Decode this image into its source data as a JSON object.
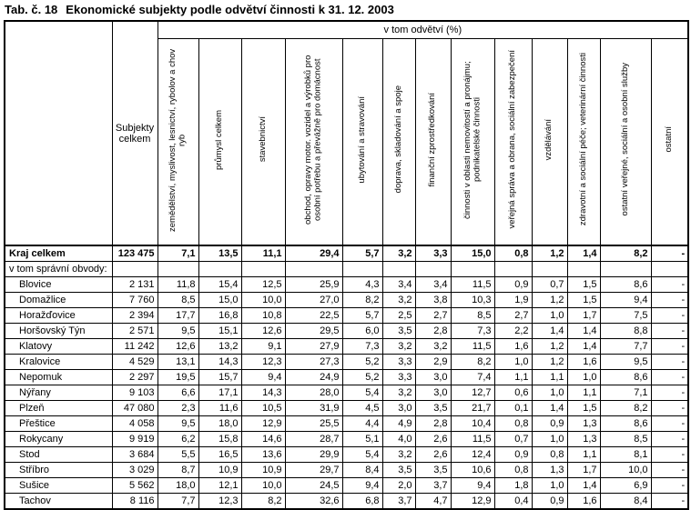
{
  "title": {
    "prefix": "Tab. č. 18",
    "text": "Ekonomické subjekty podle odvětví činnosti k 31. 12. 2003"
  },
  "table": {
    "subjects_header": "Subjekty celkem",
    "group_header": "v tom odvětví (%)",
    "columns": [
      "zemědělství, myslivost, lesnictví, rybolov a chov ryb",
      "průmysl celkem",
      "stavebnictví",
      "obchod, opravy motor. vozidel a výrobků pro osobní potřebu a převážně pro domácnost",
      "ubytování a stravování",
      "doprava, skladování a spoje",
      "finanční zprostředkování",
      "činnosti v oblasti nemovitostí a pronájmu; podnikatelské činnosti",
      "veřejná správa a obrana, sociální zabezpečení",
      "vzdělávání",
      "zdravotní a sociální péče; veterinární činnosti",
      "ostatní veřejné, sociální a osobní služby",
      "ostatní"
    ],
    "rows": [
      {
        "label": "Kraj celkem",
        "bold": true,
        "indent": false,
        "subjects": "123 475",
        "values": [
          "7,1",
          "13,5",
          "11,1",
          "29,4",
          "5,7",
          "3,2",
          "3,3",
          "15,0",
          "0,8",
          "1,2",
          "1,4",
          "8,2",
          "-"
        ]
      },
      {
        "label": "v tom správní obvody:",
        "bold": false,
        "indent": false,
        "subjects": "",
        "values": []
      },
      {
        "label": "Blovice",
        "bold": false,
        "indent": true,
        "subjects": "2 131",
        "values": [
          "11,8",
          "15,4",
          "12,5",
          "25,9",
          "4,3",
          "3,4",
          "3,4",
          "11,5",
          "0,9",
          "0,7",
          "1,5",
          "8,6",
          "-"
        ]
      },
      {
        "label": "Domažlice",
        "bold": false,
        "indent": true,
        "subjects": "7 760",
        "values": [
          "8,5",
          "15,0",
          "10,0",
          "27,0",
          "8,2",
          "3,2",
          "3,8",
          "10,3",
          "1,9",
          "1,2",
          "1,5",
          "9,4",
          "-"
        ]
      },
      {
        "label": "Horažďovice",
        "bold": false,
        "indent": true,
        "subjects": "2 394",
        "values": [
          "17,7",
          "16,8",
          "10,8",
          "22,5",
          "5,7",
          "2,5",
          "2,7",
          "8,5",
          "2,7",
          "1,0",
          "1,7",
          "7,5",
          "-"
        ]
      },
      {
        "label": "Horšovský Týn",
        "bold": false,
        "indent": true,
        "subjects": "2 571",
        "values": [
          "9,5",
          "15,1",
          "12,6",
          "29,5",
          "6,0",
          "3,5",
          "2,8",
          "7,3",
          "2,2",
          "1,4",
          "1,4",
          "8,8",
          "-"
        ]
      },
      {
        "label": "Klatovy",
        "bold": false,
        "indent": true,
        "subjects": "11 242",
        "values": [
          "12,6",
          "13,2",
          "9,1",
          "27,9",
          "7,3",
          "3,2",
          "3,2",
          "11,5",
          "1,6",
          "1,2",
          "1,4",
          "7,7",
          "-"
        ]
      },
      {
        "label": "Kralovice",
        "bold": false,
        "indent": true,
        "subjects": "4 529",
        "values": [
          "13,1",
          "14,3",
          "12,3",
          "27,3",
          "5,2",
          "3,3",
          "2,9",
          "8,2",
          "1,0",
          "1,2",
          "1,6",
          "9,5",
          "-"
        ]
      },
      {
        "label": "Nepomuk",
        "bold": false,
        "indent": true,
        "subjects": "2 297",
        "values": [
          "19,5",
          "15,7",
          "9,4",
          "24,9",
          "5,2",
          "3,3",
          "3,0",
          "7,4",
          "1,1",
          "1,1",
          "1,0",
          "8,6",
          "-"
        ]
      },
      {
        "label": "Nýřany",
        "bold": false,
        "indent": true,
        "subjects": "9 103",
        "values": [
          "6,6",
          "17,1",
          "14,3",
          "28,0",
          "5,4",
          "3,2",
          "3,0",
          "12,7",
          "0,6",
          "1,0",
          "1,1",
          "7,1",
          "-"
        ]
      },
      {
        "label": "Plzeň",
        "bold": false,
        "indent": true,
        "subjects": "47 080",
        "values": [
          "2,3",
          "11,6",
          "10,5",
          "31,9",
          "4,5",
          "3,0",
          "3,5",
          "21,7",
          "0,1",
          "1,4",
          "1,5",
          "8,2",
          "-"
        ]
      },
      {
        "label": "Přeštice",
        "bold": false,
        "indent": true,
        "subjects": "4 058",
        "values": [
          "9,5",
          "18,0",
          "12,9",
          "25,5",
          "4,4",
          "4,9",
          "2,8",
          "10,4",
          "0,8",
          "0,9",
          "1,3",
          "8,6",
          "-"
        ]
      },
      {
        "label": "Rokycany",
        "bold": false,
        "indent": true,
        "subjects": "9 919",
        "values": [
          "6,2",
          "15,8",
          "14,6",
          "28,7",
          "5,1",
          "4,0",
          "2,6",
          "11,5",
          "0,7",
          "1,0",
          "1,3",
          "8,5",
          "-"
        ]
      },
      {
        "label": "Stod",
        "bold": false,
        "indent": true,
        "subjects": "3 684",
        "values": [
          "5,5",
          "16,5",
          "13,6",
          "29,9",
          "5,4",
          "3,2",
          "2,6",
          "12,4",
          "0,9",
          "0,8",
          "1,1",
          "8,1",
          "-"
        ]
      },
      {
        "label": "Stříbro",
        "bold": false,
        "indent": true,
        "subjects": "3 029",
        "values": [
          "8,7",
          "10,9",
          "10,9",
          "29,7",
          "8,4",
          "3,5",
          "3,5",
          "10,6",
          "0,8",
          "1,3",
          "1,7",
          "10,0",
          "-"
        ]
      },
      {
        "label": "Sušice",
        "bold": false,
        "indent": true,
        "subjects": "5 562",
        "values": [
          "18,0",
          "12,1",
          "10,0",
          "24,5",
          "9,4",
          "2,0",
          "3,7",
          "9,4",
          "1,8",
          "1,0",
          "1,4",
          "6,9",
          "-"
        ]
      },
      {
        "label": "Tachov",
        "bold": false,
        "indent": true,
        "subjects": "8 116",
        "values": [
          "7,7",
          "12,3",
          "8,2",
          "32,6",
          "6,8",
          "3,7",
          "4,7",
          "12,9",
          "0,4",
          "0,9",
          "1,6",
          "8,4",
          "-"
        ]
      }
    ]
  }
}
